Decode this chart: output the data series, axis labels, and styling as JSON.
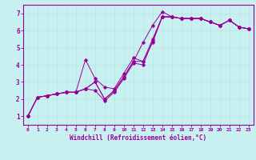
{
  "xlabel": "Windchill (Refroidissement éolien,°C)",
  "bg_color": "#c8f0f0",
  "line_color": "#990099",
  "grid_color": "#b8e4e4",
  "xlim": [
    -0.5,
    23.5
  ],
  "ylim": [
    0.5,
    7.5
  ],
  "xticks": [
    0,
    1,
    2,
    3,
    4,
    5,
    6,
    7,
    8,
    9,
    10,
    11,
    12,
    13,
    14,
    15,
    16,
    17,
    18,
    19,
    20,
    21,
    22,
    23
  ],
  "yticks": [
    1,
    2,
    3,
    4,
    5,
    6,
    7
  ],
  "line1_x": [
    0,
    1,
    2,
    3,
    4,
    5,
    6,
    7,
    8,
    9,
    10,
    11,
    12,
    13,
    14,
    15,
    16,
    17,
    18,
    19,
    20,
    21,
    22,
    23
  ],
  "line1_y": [
    1.0,
    2.1,
    2.2,
    2.3,
    2.4,
    2.4,
    2.6,
    3.0,
    2.0,
    2.5,
    3.3,
    4.2,
    5.3,
    6.3,
    7.1,
    6.8,
    6.7,
    6.7,
    6.7,
    6.5,
    6.3,
    6.6,
    6.2,
    6.1
  ],
  "line2_x": [
    0,
    1,
    2,
    3,
    4,
    5,
    6,
    7,
    8,
    9,
    10,
    11,
    12,
    13,
    14,
    15,
    16,
    17,
    18,
    19,
    20,
    21,
    22,
    23
  ],
  "line2_y": [
    1.0,
    2.1,
    2.2,
    2.3,
    2.4,
    2.4,
    4.3,
    3.2,
    2.7,
    2.6,
    3.5,
    4.4,
    4.2,
    5.5,
    6.8,
    6.8,
    6.7,
    6.7,
    6.7,
    6.5,
    6.3,
    6.6,
    6.2,
    6.1
  ],
  "line3_x": [
    0,
    1,
    2,
    3,
    4,
    5,
    6,
    7,
    8,
    9,
    10,
    11,
    12,
    13,
    14,
    15,
    16,
    17,
    18,
    19,
    20,
    21,
    22,
    23
  ],
  "line3_y": [
    1.0,
    2.1,
    2.2,
    2.3,
    2.4,
    2.4,
    2.6,
    2.5,
    1.9,
    2.4,
    3.2,
    4.1,
    4.0,
    5.4,
    6.8,
    6.8,
    6.7,
    6.7,
    6.7,
    6.5,
    6.3,
    6.6,
    6.2,
    6.1
  ],
  "line4_x": [
    0,
    1,
    2,
    3,
    4,
    5,
    6,
    7,
    8,
    9,
    10,
    11,
    12,
    13,
    14,
    15,
    16,
    17,
    18,
    19,
    20,
    21,
    22,
    23
  ],
  "line4_y": [
    1.0,
    2.1,
    2.2,
    2.3,
    2.4,
    2.4,
    2.6,
    3.0,
    2.0,
    2.5,
    3.3,
    4.2,
    4.2,
    5.3,
    6.8,
    6.8,
    6.7,
    6.7,
    6.7,
    6.5,
    6.3,
    6.6,
    6.2,
    6.1
  ]
}
